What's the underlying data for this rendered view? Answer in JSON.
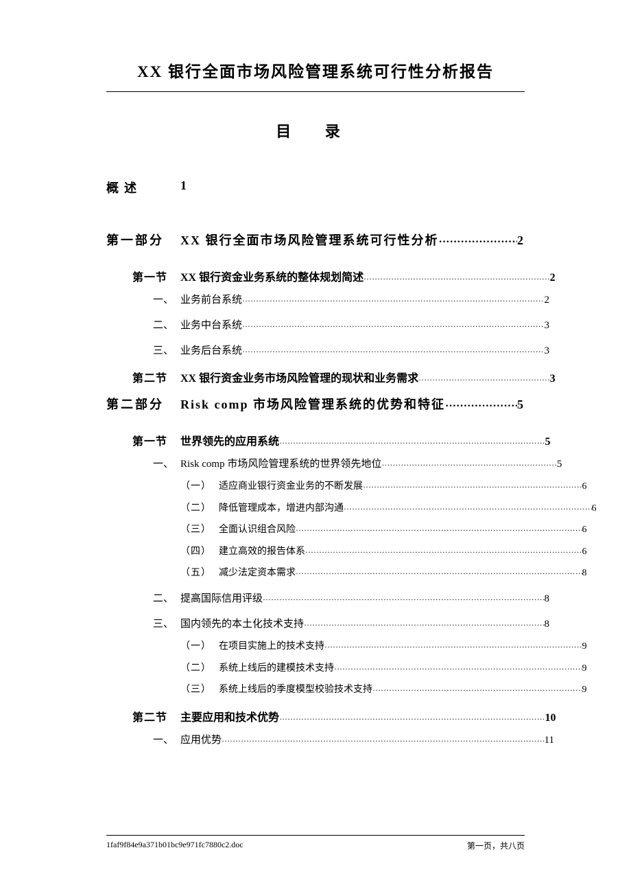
{
  "doc_title": "XX 银行全面市场风险管理系统可行性分析报告",
  "toc_heading": "目  录",
  "overview": {
    "label": "概述",
    "page": "1"
  },
  "parts": [
    {
      "label": "第一部分",
      "title": "XX 银行全面市场风险管理系统可行性分析",
      "page": "2",
      "sections": [
        {
          "label": "第一节",
          "title": "XX 银行资金业务系统的整体规划简述",
          "page": "2",
          "items": [
            {
              "label": "一、",
              "title": "业务前台系统",
              "page": "2"
            },
            {
              "label": "二、",
              "title": "业务中台系统",
              "page": "3"
            },
            {
              "label": "三、",
              "title": "业务后台系统",
              "page": "3"
            }
          ]
        },
        {
          "label": "第二节",
          "title": "XX 银行资金业务市场风险管理的现状和业务需求",
          "page": "3",
          "items": []
        }
      ]
    },
    {
      "label": "第二部分",
      "title": "Risk comp 市场风险管理系统的优势和特征",
      "page": "5",
      "sections": [
        {
          "label": "第一节",
          "title": "世界领先的应用系统",
          "page": "5",
          "items": [
            {
              "label": "一、",
              "title": "Risk comp 市场风险管理系统的世界领先地位",
              "page": "5",
              "sub": [
                {
                  "label": "（一）",
                  "title": "适应商业银行资金业务的不断发展",
                  "page": "6"
                },
                {
                  "label": "（二）",
                  "title": "降低管理成本，增进内部沟通",
                  "page": "6"
                },
                {
                  "label": "（三）",
                  "title": "全面认识组合风险",
                  "page": "6"
                },
                {
                  "label": "（四）",
                  "title": "建立高效的报告体系",
                  "page": "6"
                },
                {
                  "label": "（五）",
                  "title": "减少法定资本需求",
                  "page": "8"
                }
              ]
            },
            {
              "label": "二、",
              "title": "提高国际信用评级",
              "page": "8"
            },
            {
              "label": "三、",
              "title": "国内领先的本土化技术支持",
              "page": "8",
              "sub": [
                {
                  "label": "（一）",
                  "title": "在项目实施上的技术支持",
                  "page": "9"
                },
                {
                  "label": "（二）",
                  "title": "系统上线后的建模技术支持",
                  "page": "9"
                },
                {
                  "label": "（三）",
                  "title": "系统上线后的季度模型校验技术支持",
                  "page": "9"
                }
              ]
            }
          ]
        },
        {
          "label": "第二节",
          "title": "主要应用和技术优势",
          "page": "10",
          "items": [
            {
              "label": "一、",
              "title": "应用优势",
              "page": "11"
            }
          ]
        }
      ]
    }
  ],
  "footer": {
    "left": "1faf9f84e9a371b01bc9e971fc7880c2.doc",
    "right": "第一页，共八页"
  }
}
